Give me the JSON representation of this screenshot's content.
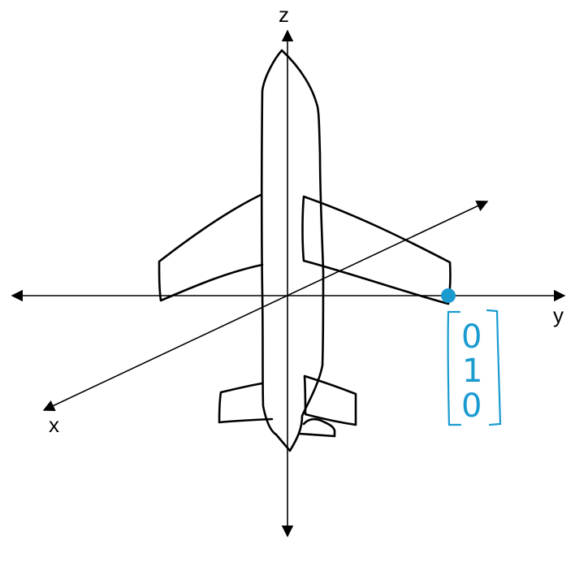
{
  "axes": {
    "z_label": "z",
    "y_label": "y",
    "x_label": "x"
  },
  "annotation": {
    "vector": [
      "0",
      "1",
      "0"
    ]
  },
  "colors": {
    "ink": "#000000",
    "point": "#1a9bd0",
    "annotation": "#1a9bd0",
    "background": "#ffffff"
  }
}
